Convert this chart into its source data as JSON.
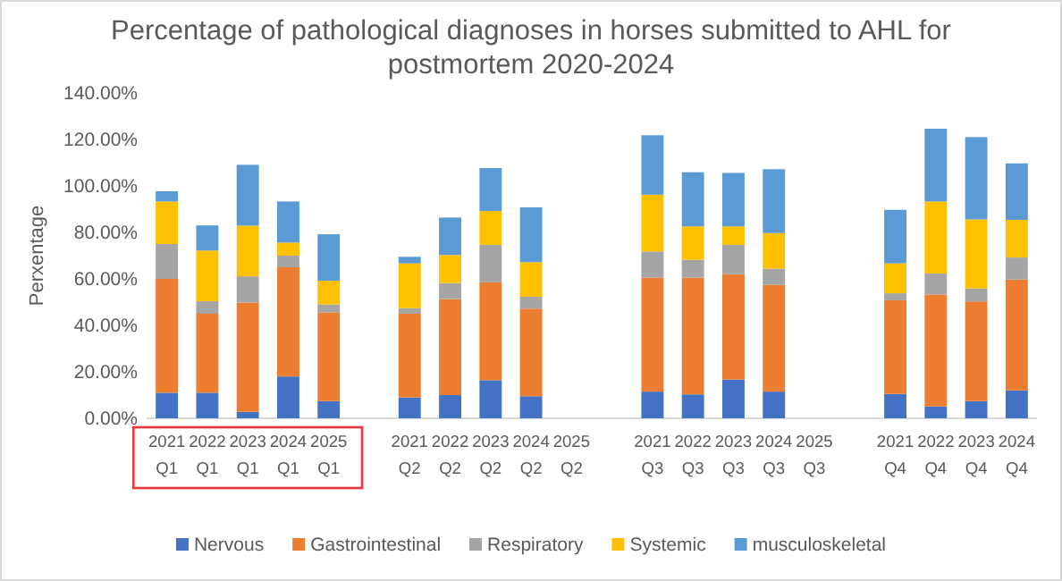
{
  "chart_data": {
    "type": "bar",
    "stacked": true,
    "title": "Percentage of pathological diagnoses in horses submitted to AHL for postmortem 2020-2024",
    "ylabel": "Perxentage",
    "categories": [
      "2021 Q1",
      "2022 Q1",
      "2023 Q1",
      "2024 Q1",
      "2025 Q1",
      null,
      "2021 Q2",
      "2022 Q2",
      "2023 Q2",
      "2024 Q2",
      "2025 Q2",
      null,
      "2021 Q3",
      "2022 Q3",
      "2023 Q3",
      "2024 Q3",
      "2025 Q3",
      null,
      "2021 Q4",
      "2022 Q4",
      "2023 Q4",
      "2024 Q4"
    ],
    "series": [
      {
        "name": "Nervous",
        "color": "#4472c4",
        "values": [
          11,
          11,
          2.8,
          18,
          7.4,
          null,
          9,
          10,
          16.4,
          9.5,
          null,
          null,
          11.5,
          10.3,
          16.7,
          11.5,
          null,
          null,
          10.5,
          5.1,
          7.4,
          12
        ]
      },
      {
        "name": "Gastrointestinal",
        "color": "#ed7d31",
        "values": [
          49,
          34,
          47,
          47,
          38.2,
          null,
          36,
          41.3,
          42.1,
          37.7,
          null,
          null,
          49,
          50.2,
          45.3,
          45.9,
          null,
          null,
          40.3,
          48.2,
          42.9,
          47.7
        ]
      },
      {
        "name": "Respiratory",
        "color": "#a5a5a5",
        "values": [
          15,
          5.4,
          11.3,
          5,
          3.4,
          null,
          2.4,
          6.9,
          16.1,
          5.1,
          null,
          null,
          11.3,
          7.7,
          12.6,
          7,
          null,
          null,
          3,
          9,
          5.6,
          9.5
        ]
      },
      {
        "name": "Systemic",
        "color": "#ffc000",
        "values": [
          18.3,
          21.8,
          21.8,
          5.6,
          10.2,
          null,
          19.3,
          12.1,
          14.6,
          14.9,
          null,
          null,
          24.4,
          14.4,
          8,
          15.3,
          null,
          null,
          12.9,
          31,
          29.7,
          16.2
        ]
      },
      {
        "name": "musculoskeletal",
        "color": "#5b9bd5",
        "values": [
          4.4,
          10.8,
          26.2,
          17.7,
          20,
          null,
          2.8,
          16.1,
          18.5,
          23.6,
          null,
          null,
          25.6,
          23.3,
          23,
          27.5,
          null,
          null,
          23,
          31.3,
          35.4,
          24.3
        ]
      }
    ],
    "ylim": [
      0,
      140
    ],
    "yticks": [
      {
        "value": 0,
        "label": "0.00%"
      },
      {
        "value": 20,
        "label": "20.00%"
      },
      {
        "value": 40,
        "label": "40.00%"
      },
      {
        "value": 60,
        "label": "60.00%"
      },
      {
        "value": 80,
        "label": "80.00%"
      },
      {
        "value": 100,
        "label": "100.00%"
      },
      {
        "value": 120,
        "label": "120.00%"
      },
      {
        "value": 140,
        "label": "140.00%"
      }
    ],
    "grid": false,
    "legend": "bottom"
  }
}
